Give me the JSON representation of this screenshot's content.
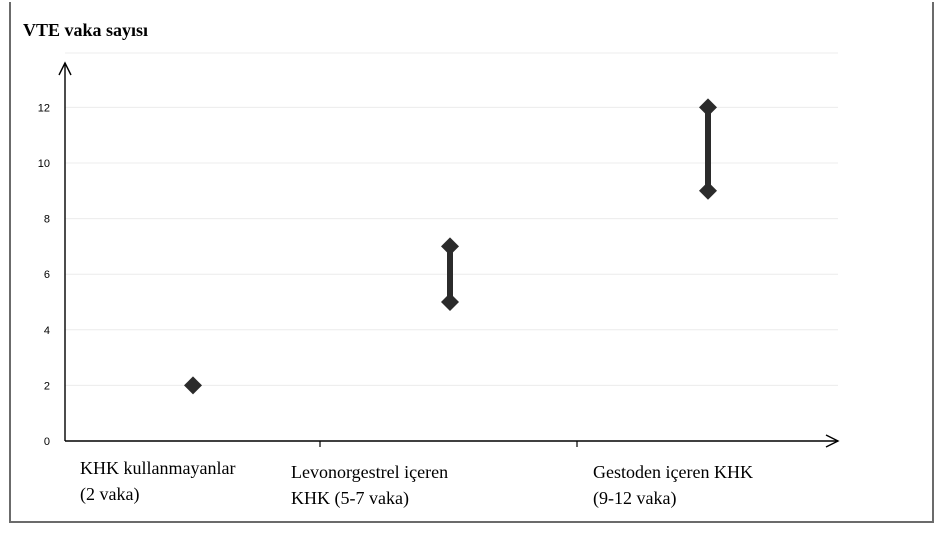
{
  "chart_data": {
    "type": "scatter",
    "ylabel": "VTE vaka sayısı",
    "xlabel": "",
    "ylim": [
      0,
      13.5
    ],
    "yticks": [
      0,
      2,
      4,
      6,
      8,
      10,
      12
    ],
    "grid": true,
    "categories": [
      "KHK kullanmayanlar\n(2 vaka)",
      "Levonorgestrel içeren\nKHK (5-7 vaka)",
      "Gestoden içeren KHK\n(9-12 vaka)"
    ],
    "ranges": [
      {
        "low": 2,
        "high": 2
      },
      {
        "low": 5,
        "high": 7
      },
      {
        "low": 9,
        "high": 12
      }
    ],
    "marker_color": "#2b2b2b",
    "grid_color": "#ececec"
  }
}
